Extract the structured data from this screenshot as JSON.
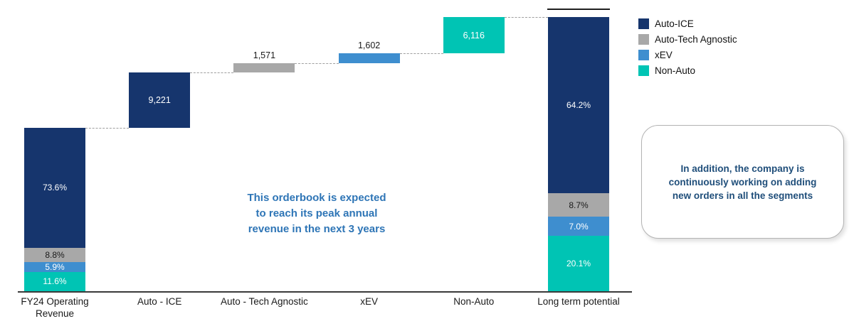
{
  "chart_data": {
    "type": "waterfall",
    "title": "",
    "xlabel": "",
    "ylabel": "",
    "gridlines": false,
    "legend_position": "top-right",
    "ylim_estimate": [
      0,
      45900
    ],
    "categories": [
      "FY24 Operating\nRevenue",
      "Auto - ICE",
      "Auto - Tech Agnostic",
      "xEV",
      "Non-Auto",
      "Long term potential"
    ],
    "colors": {
      "Auto-ICE": "#16356d",
      "Auto-Tech Agnostic": "#a8a8a8",
      "xEV": "#3e8ecf",
      "Non-Auto": "#00c4b4"
    },
    "legend": [
      "Auto-ICE",
      "Auto-Tech Agnostic",
      "xEV",
      "Non-Auto"
    ],
    "start_bar": {
      "category": "FY24 Operating\nRevenue",
      "total_estimate": 27400,
      "segments": [
        {
          "name": "Auto-ICE",
          "pct": 73.6,
          "label": "73.6%",
          "text_color": "#ffffff"
        },
        {
          "name": "Auto-Tech Agnostic",
          "pct": 8.8,
          "label": "8.8%",
          "text_color": "#1a1a1a"
        },
        {
          "name": "xEV",
          "pct": 5.9,
          "label": "5.9%",
          "text_color": "#ffffff"
        },
        {
          "name": "Non-Auto",
          "pct": 11.6,
          "label": "11.6%",
          "text_color": "#ffffff"
        }
      ]
    },
    "increments": [
      {
        "category": "Auto - ICE",
        "series": "Auto-ICE",
        "value": 9221,
        "label": "9,221",
        "label_position": "inside"
      },
      {
        "category": "Auto - Tech Agnostic",
        "series": "Auto-Tech Agnostic",
        "value": 1571,
        "label": "1,571",
        "label_position": "above"
      },
      {
        "category": "xEV",
        "series": "xEV",
        "value": 1602,
        "label": "1,602",
        "label_position": "above"
      },
      {
        "category": "Non-Auto",
        "series": "Non-Auto",
        "value": 6116,
        "label": "6,116",
        "label_position": "inside"
      }
    ],
    "end_bar": {
      "category": "Long term potential",
      "segments": [
        {
          "name": "Auto-ICE",
          "pct": 64.2,
          "label": "64.2%",
          "text_color": "#ffffff"
        },
        {
          "name": "Auto-Tech Agnostic",
          "pct": 8.7,
          "label": "8.7%",
          "text_color": "#1a1a1a"
        },
        {
          "name": "xEV",
          "pct": 7.0,
          "label": "7.0%",
          "text_color": "#ffffff"
        },
        {
          "name": "Non-Auto",
          "pct": 20.1,
          "label": "20.1%",
          "text_color": "#ffffff"
        }
      ]
    }
  },
  "annotation": {
    "lines": [
      "This orderbook is expected",
      "to reach its peak annual",
      "revenue in the next 3 years"
    ],
    "color": "#2e75b6"
  },
  "callout": {
    "text": "In addition, the company is continuously working on adding new orders in all the segments",
    "text_color": "#1f4e7a"
  }
}
